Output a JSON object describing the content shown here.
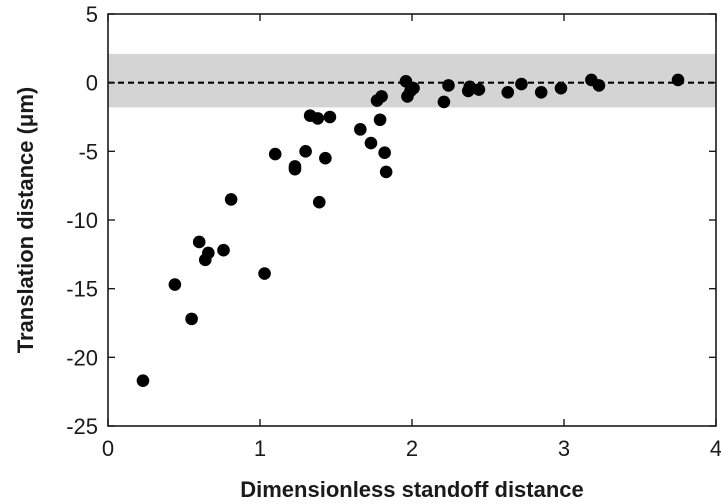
{
  "chart_data": {
    "type": "scatter",
    "title": "",
    "xlabel": "Dimensionless standoff distance",
    "ylabel": "Translation distance (μm)",
    "xlim": [
      0,
      4
    ],
    "ylim": [
      -25,
      5
    ],
    "xticks": [
      "0",
      "1",
      "2",
      "3",
      "4"
    ],
    "yticks": [
      "5",
      "0",
      "-5",
      "-10",
      "-15",
      "-20",
      "-25"
    ],
    "xtick_values": [
      0,
      1,
      2,
      3,
      4
    ],
    "ytick_values": [
      5,
      0,
      -5,
      -10,
      -15,
      -20,
      -25
    ],
    "grid": false,
    "reference_line": {
      "y": 0,
      "style": "dashed",
      "color": "#000000"
    },
    "band": {
      "ymin": -1.8,
      "ymax": 2.1,
      "color": "#d4d4d4"
    },
    "marker_color": "#000000",
    "points": [
      {
        "x": 0.23,
        "y": -21.7
      },
      {
        "x": 0.44,
        "y": -14.7
      },
      {
        "x": 0.55,
        "y": -17.2
      },
      {
        "x": 0.6,
        "y": -11.6
      },
      {
        "x": 0.64,
        "y": -12.9
      },
      {
        "x": 0.66,
        "y": -12.4
      },
      {
        "x": 0.76,
        "y": -12.2
      },
      {
        "x": 0.81,
        "y": -8.5
      },
      {
        "x": 1.03,
        "y": -13.9
      },
      {
        "x": 1.1,
        "y": -5.2
      },
      {
        "x": 1.23,
        "y": -6.1
      },
      {
        "x": 1.23,
        "y": -6.3
      },
      {
        "x": 1.3,
        "y": -5.0
      },
      {
        "x": 1.33,
        "y": -2.4
      },
      {
        "x": 1.38,
        "y": -2.6
      },
      {
        "x": 1.39,
        "y": -8.7
      },
      {
        "x": 1.43,
        "y": -5.5
      },
      {
        "x": 1.46,
        "y": -2.5
      },
      {
        "x": 1.66,
        "y": -3.4
      },
      {
        "x": 1.73,
        "y": -4.4
      },
      {
        "x": 1.77,
        "y": -1.3
      },
      {
        "x": 1.79,
        "y": -2.7
      },
      {
        "x": 1.8,
        "y": -1.0
      },
      {
        "x": 1.82,
        "y": -5.1
      },
      {
        "x": 1.83,
        "y": -6.5
      },
      {
        "x": 1.96,
        "y": 0.1
      },
      {
        "x": 1.97,
        "y": -1.0
      },
      {
        "x": 1.99,
        "y": -0.6
      },
      {
        "x": 2.01,
        "y": -0.4
      },
      {
        "x": 2.21,
        "y": -1.4
      },
      {
        "x": 2.24,
        "y": -0.2
      },
      {
        "x": 2.37,
        "y": -0.6
      },
      {
        "x": 2.38,
        "y": -0.3
      },
      {
        "x": 2.44,
        "y": -0.5
      },
      {
        "x": 2.63,
        "y": -0.7
      },
      {
        "x": 2.72,
        "y": -0.1
      },
      {
        "x": 2.85,
        "y": -0.7
      },
      {
        "x": 2.98,
        "y": -0.4
      },
      {
        "x": 3.18,
        "y": 0.2
      },
      {
        "x": 3.23,
        "y": -0.2
      },
      {
        "x": 3.75,
        "y": 0.2
      }
    ]
  }
}
